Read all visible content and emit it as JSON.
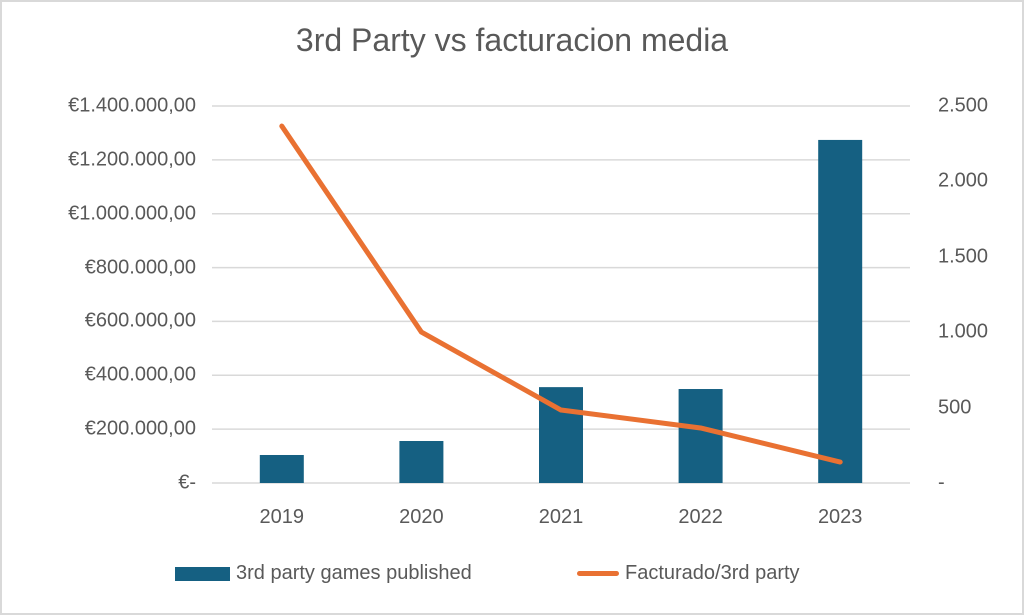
{
  "chart_data": {
    "type": "bar",
    "title": "3rd Party vs facturacion media",
    "categories": [
      "2019",
      "2020",
      "2021",
      "2022",
      "2023"
    ],
    "series": [
      {
        "name": "3rd party games published",
        "type": "bar",
        "axis": "left",
        "color": "#156082",
        "values": [
          104000,
          156000,
          356000,
          349000,
          1274000
        ]
      },
      {
        "name": "Facturado/3rd party",
        "type": "line",
        "axis": "right",
        "color": "#E97132",
        "values": [
          2367,
          1001,
          484,
          365,
          139
        ]
      }
    ],
    "left_axis": {
      "range": [
        0,
        1400000
      ],
      "ticks": [
        "€-",
        "€200.000,00",
        "€400.000,00",
        "€600.000,00",
        "€800.000,00",
        "€1.000.000,00",
        "€1.200.000,00",
        "€1.400.000,00"
      ]
    },
    "right_axis": {
      "range": [
        0,
        2500
      ],
      "ticks": [
        "-",
        "500",
        "1.000",
        "1.500",
        "2.000",
        "2.500"
      ]
    },
    "xlabel": "",
    "ylabel": "",
    "grid": true,
    "legend_position": "bottom"
  },
  "legend": {
    "bar_label": "3rd party games published",
    "line_label": "Facturado/3rd party"
  }
}
